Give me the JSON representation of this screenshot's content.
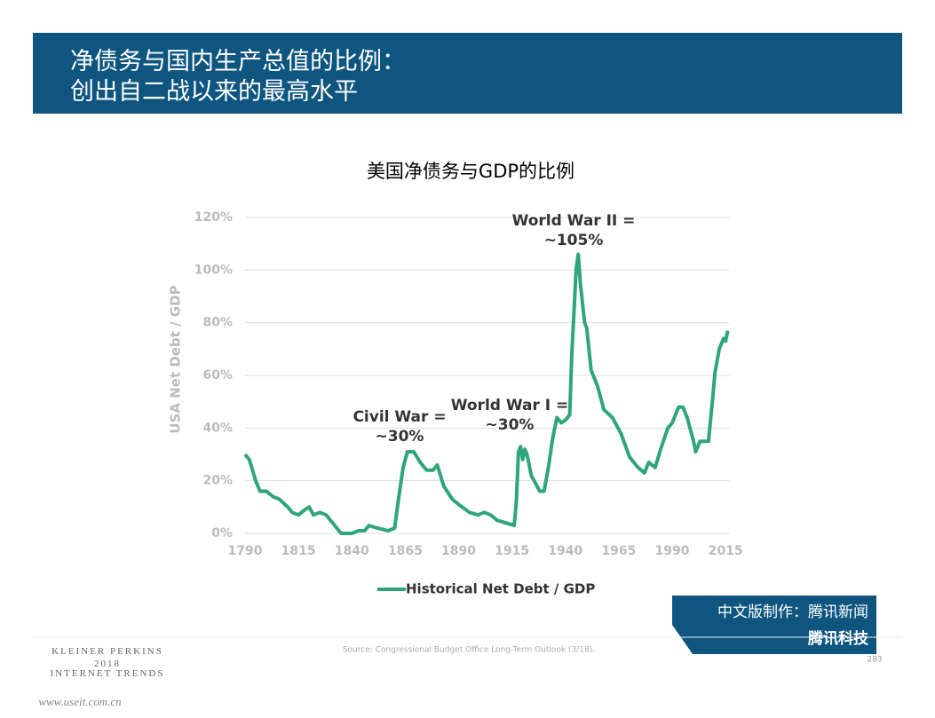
{
  "header": {
    "title_lines": [
      "净债务与国内生产总值的比例：",
      "创出自二战以来的最高水平"
    ]
  },
  "chart_data": {
    "type": "line",
    "title": "美国净债务与GDP的比例",
    "y_label": "USA Net Debt / GDP",
    "x": [
      1790,
      1792,
      1795,
      1797,
      1800,
      1803,
      1806,
      1810,
      1812,
      1815,
      1818,
      1820,
      1822,
      1825,
      1828,
      1830,
      1833,
      1835,
      1838,
      1840,
      1843,
      1846,
      1848,
      1852,
      1857,
      1860,
      1862,
      1864,
      1866,
      1869,
      1872,
      1875,
      1878,
      1880,
      1883,
      1887,
      1890,
      1895,
      1899,
      1902,
      1905,
      1908,
      1912,
      1916,
      1917,
      1918,
      1919,
      1920,
      1921,
      1922,
      1924,
      1928,
      1930,
      1932,
      1934,
      1936,
      1938,
      1940,
      1942,
      1943,
      1945,
      1946,
      1947,
      1949,
      1950,
      1952,
      1955,
      1958,
      1962,
      1966,
      1970,
      1974,
      1977,
      1979,
      1982,
      1985,
      1988,
      1990,
      1993,
      1995,
      1997,
      2000,
      2001,
      2003,
      2007,
      2009,
      2010,
      2012,
      2014,
      2015,
      2016
    ],
    "series": [
      {
        "name": "Historical Net Debt / GDP",
        "color": "#2fa57a",
        "values": [
          30,
          28,
          20,
          16,
          16,
          14,
          13,
          10,
          8,
          7,
          9,
          10,
          7,
          8,
          7,
          5,
          2,
          0,
          0,
          0,
          1,
          1,
          3,
          2,
          1,
          2,
          14,
          25,
          31,
          31,
          27,
          24,
          24,
          26,
          18,
          13,
          11,
          8,
          7,
          8,
          7,
          5,
          4,
          3,
          12,
          31,
          33,
          28,
          32,
          30,
          22,
          16,
          16,
          25,
          36,
          44,
          42,
          43,
          45,
          68,
          100,
          106,
          95,
          80,
          78,
          62,
          56,
          47,
          44,
          38,
          29,
          25,
          23,
          27,
          25,
          33,
          40,
          42,
          48,
          48,
          44,
          35,
          31,
          35,
          35,
          52,
          61,
          70,
          74,
          73,
          77
        ]
      }
    ],
    "xlim": [
      1790,
      2017
    ],
    "ylim": [
      0,
      120
    ],
    "xticks": [
      1790,
      1815,
      1840,
      1865,
      1890,
      1915,
      1940,
      1965,
      1990,
      2015
    ],
    "yticks": [
      {
        "value": 0,
        "label": "0%"
      },
      {
        "value": 20,
        "label": "20%"
      },
      {
        "value": 40,
        "label": "40%"
      },
      {
        "value": 60,
        "label": "60%"
      },
      {
        "value": 80,
        "label": "80%"
      },
      {
        "value": 100,
        "label": "100%"
      },
      {
        "value": 120,
        "label": "120%"
      }
    ],
    "grid": true,
    "annotations": [
      [
        "Civil War =",
        "~30%"
      ],
      [
        "World War I =",
        "~30%"
      ],
      [
        "World War II =",
        "~105%"
      ]
    ],
    "source": "Source: Congressional Budget Office Long-Term Outlook (3/18)."
  },
  "footer": {
    "brand": [
      "KLEINER PERKINS",
      "2018",
      "INTERNET TRENDS"
    ],
    "page": "283",
    "badge": [
      "中文版制作：腾讯新闻",
      "腾讯科技"
    ],
    "watermark": "www.useit.com.cn"
  }
}
